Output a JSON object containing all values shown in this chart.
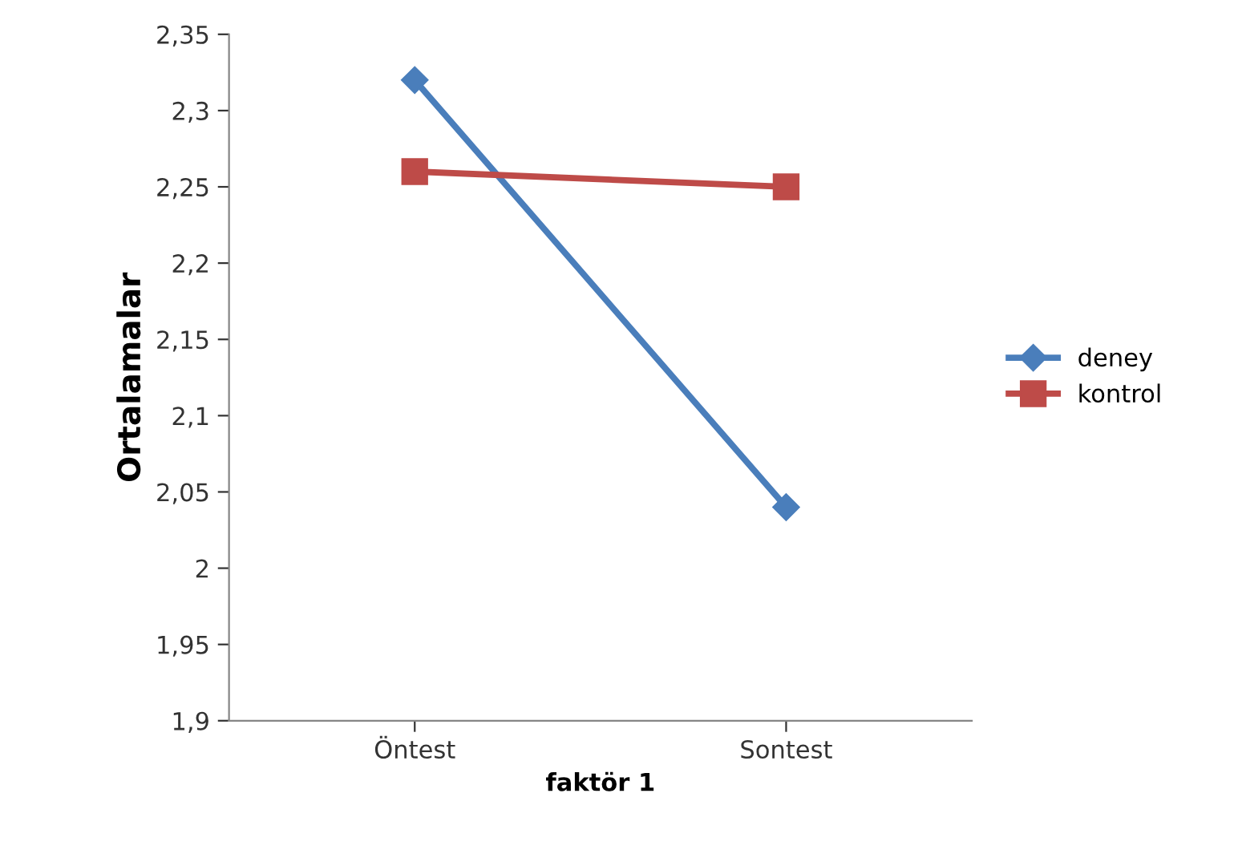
{
  "chart_data": {
    "type": "line",
    "xlabel": "faktör 1",
    "ylabel": "Ortalamalar",
    "categories": [
      "Öntest",
      "Sontest"
    ],
    "series": [
      {
        "name": "deney",
        "color": "#4a7ebb",
        "values": [
          2.32,
          2.04
        ],
        "marker": "diamond"
      },
      {
        "name": "kontrol",
        "color": "#be4b48",
        "values": [
          2.26,
          2.25
        ],
        "marker": "square"
      }
    ],
    "ylim": [
      1.9,
      2.35
    ],
    "yticks": [
      {
        "value": 1.9,
        "label": "1,9"
      },
      {
        "value": 1.95,
        "label": "1,95"
      },
      2,
      {
        "value": 2.05,
        "label": "2,05"
      },
      {
        "value": 2.1,
        "label": "2,1"
      },
      {
        "value": 2.15,
        "label": "2,15"
      },
      {
        "value": 2.2,
        "label": "2,2"
      },
      {
        "value": 2.25,
        "label": "2,25"
      },
      {
        "value": 2.3,
        "label": "2,3"
      },
      {
        "value": 2.35,
        "label": "2,35"
      }
    ],
    "grid": false,
    "legend": "right",
    "line_style": "solid"
  }
}
